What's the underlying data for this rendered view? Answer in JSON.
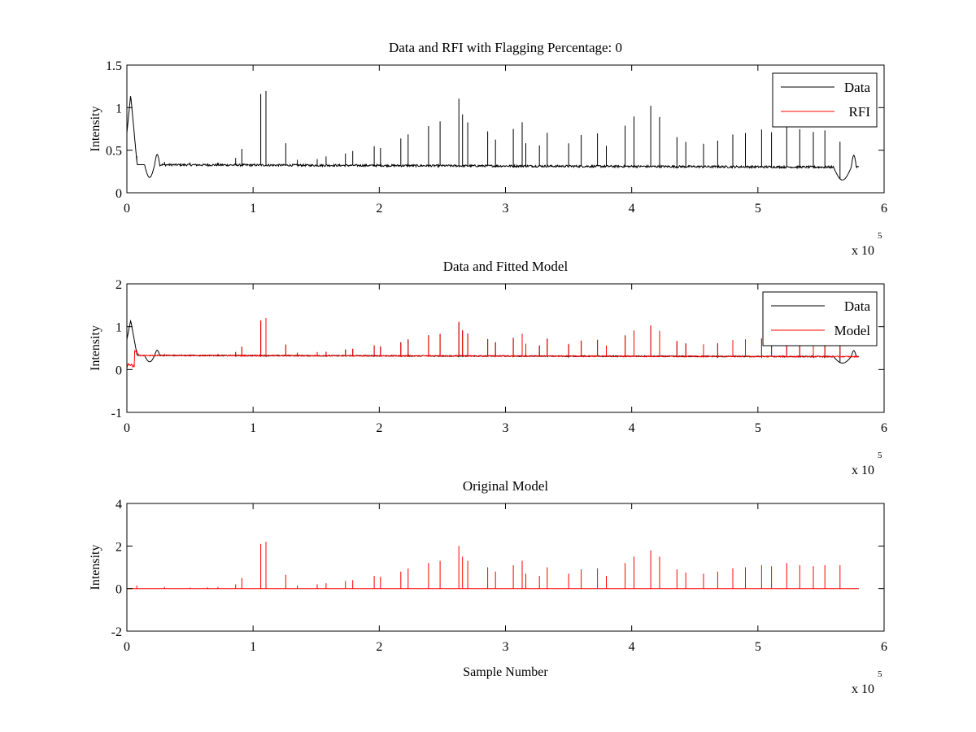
{
  "chart_data": [
    {
      "type": "line",
      "title": "Data and RFI with Flagging Percentage: 0",
      "xlabel": "",
      "ylabel": "Intensity",
      "xlim": [
        0,
        600000
      ],
      "ylim": [
        0,
        1.5
      ],
      "xticks": [
        0,
        1,
        2,
        3,
        4,
        5,
        6
      ],
      "yticks": [
        0,
        0.5,
        1,
        1.5
      ],
      "ytick_labels": [
        "0",
        "0.5",
        "1",
        "1.5"
      ],
      "x_multiplier": "x 10",
      "x_multiplier_exp": "5",
      "grid": false,
      "legend_position": "top-right",
      "legend": [
        {
          "label": "Data",
          "color": "#000000"
        },
        {
          "label": "RFI",
          "color": "#ff0000"
        }
      ],
      "series": [
        {
          "name": "Data",
          "color": "#000000",
          "baseline": 0.33,
          "spike_scale": 0.18,
          "start_dip": true,
          "end_dip": true,
          "min_x": 0,
          "max_x": 580000
        }
      ]
    },
    {
      "type": "line",
      "title": "Data and Fitted Model",
      "xlabel": "",
      "ylabel": "Intensity",
      "xlim": [
        0,
        600000
      ],
      "ylim": [
        -1,
        2
      ],
      "xticks": [
        0,
        1,
        2,
        3,
        4,
        5,
        6
      ],
      "yticks": [
        -1,
        0,
        1,
        2
      ],
      "ytick_labels": [
        "-1",
        "0",
        "1",
        "2"
      ],
      "x_multiplier": "x 10",
      "x_multiplier_exp": "5",
      "grid": false,
      "legend_position": "top-right",
      "legend": [
        {
          "label": "Data",
          "color": "#000000"
        },
        {
          "label": "Model",
          "color": "#ff0000"
        }
      ],
      "series": [
        {
          "name": "Data",
          "color": "#000000",
          "baseline": 0.33,
          "spike_scale": 0.18,
          "start_dip": true,
          "end_dip": true
        },
        {
          "name": "Model",
          "color": "#ff0000",
          "baseline": 0.33,
          "spike_scale": 0.18,
          "start_low": true
        }
      ]
    },
    {
      "type": "line",
      "title": "Original Model",
      "xlabel": "Sample Number",
      "ylabel": "Intensity",
      "xlim": [
        0,
        600000
      ],
      "ylim": [
        -2,
        4
      ],
      "xticks": [
        0,
        1,
        2,
        3,
        4,
        5,
        6
      ],
      "yticks": [
        -2,
        0,
        2,
        4
      ],
      "ytick_labels": [
        "-2",
        "0",
        "2",
        "4"
      ],
      "x_multiplier": "x 10",
      "x_multiplier_exp": "5",
      "grid": false,
      "series": [
        {
          "name": "Original Model",
          "color": "#ff0000",
          "baseline": 0.0,
          "spike_scale": 1.0
        }
      ]
    }
  ],
  "spikes": [
    {
      "x": 8000,
      "h": 0.15
    },
    {
      "x": 30000,
      "h": 0.08
    },
    {
      "x": 50000,
      "h": 0.05
    },
    {
      "x": 64000,
      "h": 0.06
    },
    {
      "x": 72000,
      "h": 0.08
    },
    {
      "x": 86000,
      "h": 0.2
    },
    {
      "x": 91000,
      "h": 0.5
    },
    {
      "x": 106000,
      "h": 2.1
    },
    {
      "x": 110000,
      "h": 2.2
    },
    {
      "x": 126000,
      "h": 0.65
    },
    {
      "x": 135000,
      "h": 0.15
    },
    {
      "x": 151000,
      "h": 0.2
    },
    {
      "x": 158000,
      "h": 0.25
    },
    {
      "x": 173000,
      "h": 0.35
    },
    {
      "x": 179000,
      "h": 0.4
    },
    {
      "x": 196000,
      "h": 0.6
    },
    {
      "x": 201000,
      "h": 0.55
    },
    {
      "x": 217000,
      "h": 0.8
    },
    {
      "x": 223000,
      "h": 0.95
    },
    {
      "x": 239000,
      "h": 1.2
    },
    {
      "x": 248000,
      "h": 1.3
    },
    {
      "x": 263000,
      "h": 2.0
    },
    {
      "x": 266000,
      "h": 1.5
    },
    {
      "x": 270000,
      "h": 1.3
    },
    {
      "x": 286000,
      "h": 1.0
    },
    {
      "x": 292000,
      "h": 0.8
    },
    {
      "x": 306000,
      "h": 1.1
    },
    {
      "x": 313000,
      "h": 1.3
    },
    {
      "x": 316000,
      "h": 0.7
    },
    {
      "x": 327000,
      "h": 0.6
    },
    {
      "x": 333000,
      "h": 1.0
    },
    {
      "x": 350000,
      "h": 0.7
    },
    {
      "x": 360000,
      "h": 0.9
    },
    {
      "x": 373000,
      "h": 0.95
    },
    {
      "x": 380000,
      "h": 0.6
    },
    {
      "x": 395000,
      "h": 1.2
    },
    {
      "x": 402000,
      "h": 1.5
    },
    {
      "x": 415000,
      "h": 1.8
    },
    {
      "x": 422000,
      "h": 1.5
    },
    {
      "x": 436000,
      "h": 0.9
    },
    {
      "x": 443000,
      "h": 0.75
    },
    {
      "x": 457000,
      "h": 0.7
    },
    {
      "x": 468000,
      "h": 0.8
    },
    {
      "x": 480000,
      "h": 0.95
    },
    {
      "x": 490000,
      "h": 1.0
    },
    {
      "x": 503000,
      "h": 1.1
    },
    {
      "x": 511000,
      "h": 1.05
    },
    {
      "x": 523000,
      "h": 1.2
    },
    {
      "x": 533000,
      "h": 1.1
    },
    {
      "x": 544000,
      "h": 1.05
    },
    {
      "x": 553000,
      "h": 1.1
    },
    {
      "x": 565000,
      "h": 1.1
    }
  ]
}
